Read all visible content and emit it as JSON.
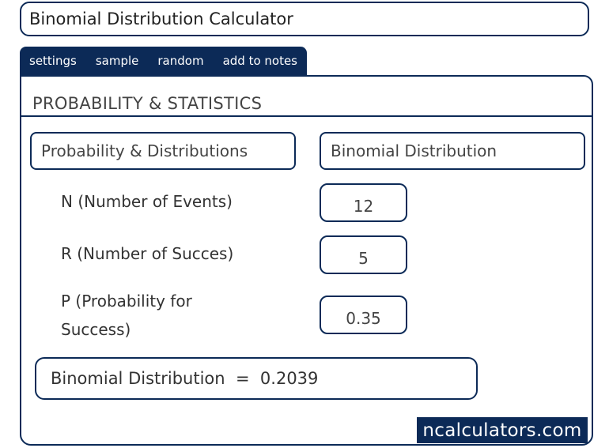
{
  "app": {
    "title": "Binomial Distribution Calculator"
  },
  "tabs": [
    {
      "label": "settings"
    },
    {
      "label": "sample"
    },
    {
      "label": "random"
    },
    {
      "label": "add to notes"
    }
  ],
  "section": {
    "title": "PROBABILITY & STATISTICS"
  },
  "selectors": {
    "category": "Probability & Distributions",
    "calculator": "Binomial Distribution"
  },
  "fields": {
    "n": {
      "label": "N (Number of Events)",
      "value": "12"
    },
    "r": {
      "label": "R (Number of Succes)",
      "value": "5"
    },
    "p": {
      "label_line1": "P (Probability for",
      "label_line2": "Success)",
      "value": "0.35"
    }
  },
  "result": {
    "label": "Binomial Distribution",
    "equals": "=",
    "value": "0.2039"
  },
  "brand": {
    "text": "ncalculators.com"
  },
  "colors": {
    "accent": "#0c2a57",
    "text": "#333333"
  }
}
